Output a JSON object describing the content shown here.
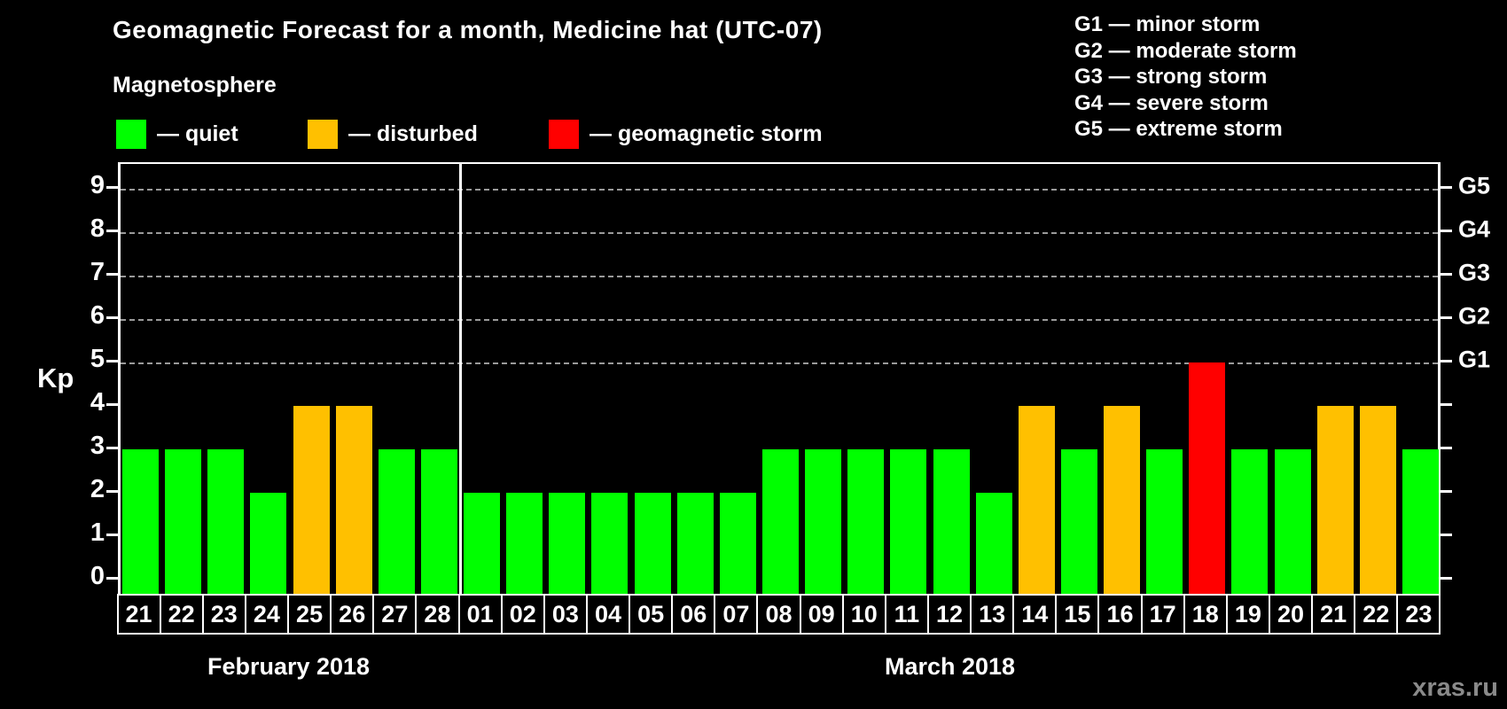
{
  "header": {
    "title": "Geomagnetic Forecast for a month, Medicine hat (UTC-07)",
    "subtitle": "Magnetosphere"
  },
  "legend": {
    "items": [
      {
        "name": "quiet",
        "label": "— quiet",
        "color": "#00ff00"
      },
      {
        "name": "disturbed",
        "label": "— disturbed",
        "color": "#ffc000"
      },
      {
        "name": "storm",
        "label": "— geomagnetic storm",
        "color": "#ff0000"
      }
    ]
  },
  "g_scale_legend": [
    "G1 — minor storm",
    "G2 — moderate storm",
    "G3 — strong storm",
    "G4 — severe storm",
    "G5 — extreme storm"
  ],
  "watermark": "xras.ru",
  "chart_data": {
    "type": "bar",
    "title": "Geomagnetic Forecast for a month, Medicine hat (UTC-07)",
    "ylabel": "Kp",
    "ylim": [
      0,
      9
    ],
    "yticks": [
      0,
      1,
      2,
      3,
      4,
      5,
      6,
      7,
      8,
      9
    ],
    "gridlines_at": [
      5,
      6,
      7,
      8,
      9
    ],
    "grid": "dashed",
    "right_axis_labels": [
      {
        "kp": 5,
        "label": "G1"
      },
      {
        "kp": 6,
        "label": "G2"
      },
      {
        "kp": 7,
        "label": "G3"
      },
      {
        "kp": 8,
        "label": "G4"
      },
      {
        "kp": 9,
        "label": "G5"
      }
    ],
    "status_colors": {
      "quiet": "#00ff00",
      "disturbed": "#ffc000",
      "storm": "#ff0000"
    },
    "sections": [
      {
        "label": "February 2018",
        "days": [
          {
            "day": "21",
            "kp": 3,
            "status": "quiet"
          },
          {
            "day": "22",
            "kp": 3,
            "status": "quiet"
          },
          {
            "day": "23",
            "kp": 3,
            "status": "quiet"
          },
          {
            "day": "24",
            "kp": 2,
            "status": "quiet"
          },
          {
            "day": "25",
            "kp": 4,
            "status": "disturbed"
          },
          {
            "day": "26",
            "kp": 4,
            "status": "disturbed"
          },
          {
            "day": "27",
            "kp": 3,
            "status": "quiet"
          },
          {
            "day": "28",
            "kp": 3,
            "status": "quiet"
          }
        ]
      },
      {
        "label": "March 2018",
        "days": [
          {
            "day": "01",
            "kp": 2,
            "status": "quiet"
          },
          {
            "day": "02",
            "kp": 2,
            "status": "quiet"
          },
          {
            "day": "03",
            "kp": 2,
            "status": "quiet"
          },
          {
            "day": "04",
            "kp": 2,
            "status": "quiet"
          },
          {
            "day": "05",
            "kp": 2,
            "status": "quiet"
          },
          {
            "day": "06",
            "kp": 2,
            "status": "quiet"
          },
          {
            "day": "07",
            "kp": 2,
            "status": "quiet"
          },
          {
            "day": "08",
            "kp": 3,
            "status": "quiet"
          },
          {
            "day": "09",
            "kp": 3,
            "status": "quiet"
          },
          {
            "day": "10",
            "kp": 3,
            "status": "quiet"
          },
          {
            "day": "11",
            "kp": 3,
            "status": "quiet"
          },
          {
            "day": "12",
            "kp": 3,
            "status": "quiet"
          },
          {
            "day": "13",
            "kp": 2,
            "status": "quiet"
          },
          {
            "day": "14",
            "kp": 4,
            "status": "disturbed"
          },
          {
            "day": "15",
            "kp": 3,
            "status": "quiet"
          },
          {
            "day": "16",
            "kp": 4,
            "status": "disturbed"
          },
          {
            "day": "17",
            "kp": 3,
            "status": "quiet"
          },
          {
            "day": "18",
            "kp": 5,
            "status": "storm"
          },
          {
            "day": "19",
            "kp": 3,
            "status": "quiet"
          },
          {
            "day": "20",
            "kp": 3,
            "status": "quiet"
          },
          {
            "day": "21",
            "kp": 4,
            "status": "disturbed"
          },
          {
            "day": "22",
            "kp": 4,
            "status": "disturbed"
          },
          {
            "day": "23",
            "kp": 3,
            "status": "quiet"
          }
        ]
      }
    ]
  }
}
